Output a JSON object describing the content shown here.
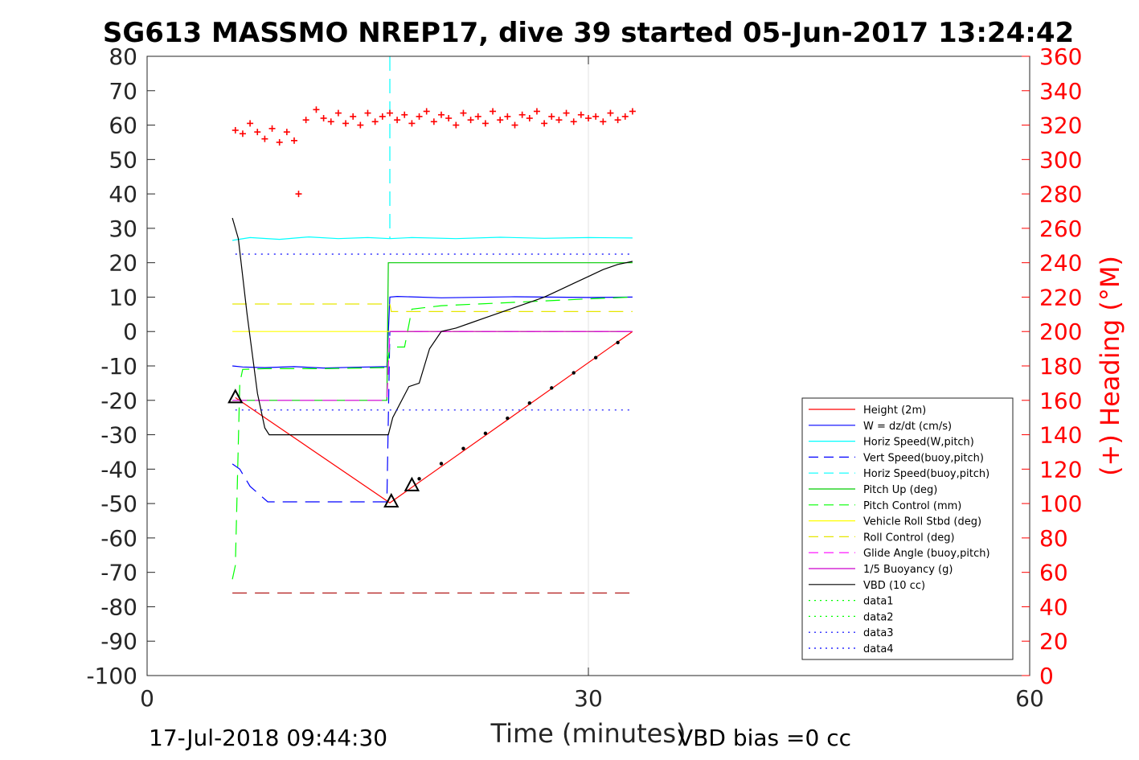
{
  "chart_data": {
    "type": "line",
    "title": "SG613 MASSMO NREP17, dive 39 started 05-Jun-2017 13:24:42",
    "xlabel": "Time (minutes)",
    "ylabel": "",
    "y2label": "(+) Heading (°M)",
    "xlim": [
      0,
      60
    ],
    "ylim": [
      -100,
      80
    ],
    "y2lim": [
      0,
      360
    ],
    "xticks": [
      "0",
      "30",
      "60"
    ],
    "yticks": [
      "80",
      "70",
      "60",
      "50",
      "40",
      "30",
      "20",
      "10",
      "0",
      "-10",
      "-20",
      "-30",
      "-40",
      "-50",
      "-60",
      "-70",
      "-80",
      "-90",
      "-100"
    ],
    "y2ticks": [
      "360",
      "340",
      "320",
      "300",
      "280",
      "260",
      "240",
      "220",
      "200",
      "180",
      "160",
      "140",
      "120",
      "100",
      "80",
      "60",
      "40",
      "20",
      "0"
    ],
    "grid": true,
    "legend_position": "lower-right inside",
    "footer_left": "17-Jul-2018 09:44:30",
    "footer_right": "VBD bias =0 cc",
    "series": [
      {
        "name": "Height (2m)",
        "color": "#ff0000",
        "style": "solid",
        "x": [
          6.0,
          16.5,
          33.0
        ],
        "y": [
          -19.2,
          -49.8,
          0
        ]
      },
      {
        "name": "W = dz/dt (cm/s)",
        "color": "#0000ff",
        "style": "solid",
        "x": [
          5.8,
          6.5,
          8.0,
          10.0,
          12.0,
          14.0,
          16.3,
          16.5,
          17.0,
          20.0,
          25.0,
          30.0,
          33.0
        ],
        "y": [
          -10,
          -10.3,
          -10.5,
          -10.2,
          -10.6,
          -10.4,
          -10.2,
          10,
          10.2,
          9.8,
          10.1,
          9.9,
          10
        ]
      },
      {
        "name": "Horiz Speed(W,pitch)",
        "color": "#00ffff",
        "style": "solid",
        "x": [
          5.8,
          7.0,
          9.0,
          11.0,
          13.0,
          15.0,
          16.5,
          18.0,
          21.0,
          24.0,
          27.0,
          30.0,
          33.0
        ],
        "y": [
          26.5,
          27.3,
          26.8,
          27.5,
          27.0,
          27.3,
          27.0,
          27.3,
          27.0,
          27.4,
          27.1,
          27.3,
          27.2
        ]
      },
      {
        "name": "Vert Speed(buoy,pitch)",
        "color": "#0000ff",
        "style": "dash",
        "x": [
          5.8,
          6.3,
          7.0,
          8.2,
          12.0,
          16.3,
          16.5,
          17.0,
          25.0,
          33.0
        ],
        "y": [
          -38.5,
          -40,
          -45,
          -49.5,
          -49.5,
          -49.5,
          0,
          0,
          0,
          0
        ]
      },
      {
        "name": "Horiz Speed(buoy,pitch)",
        "color": "#00ffff",
        "style": "dash",
        "x": [
          16.5,
          16.5
        ],
        "y": [
          80,
          27
        ]
      },
      {
        "name": "Pitch Up (deg)",
        "color": "#00cc00",
        "style": "solid",
        "x": [
          5.8,
          16.3,
          16.4,
          16.6,
          33.0
        ],
        "y": [
          -20,
          -20,
          20,
          20,
          20
        ]
      },
      {
        "name": "Pitch Control (mm)",
        "color": "#00ff00",
        "style": "dash",
        "x": [
          5.8,
          6.0,
          6.3,
          6.5,
          8.0,
          12.0,
          16.3,
          16.5,
          17.5,
          18.0,
          20.0,
          25.0,
          30.0,
          33.0
        ],
        "y": [
          -72,
          -68,
          -15,
          -11,
          -10.8,
          -10.8,
          -10.5,
          -4.5,
          -4.5,
          6.5,
          7.5,
          8.5,
          9.5,
          10
        ]
      },
      {
        "name": "Vehicle Roll Stbd (deg)",
        "color": "#ffff00",
        "style": "solid",
        "x": [
          5.8,
          33.0
        ],
        "y": [
          0,
          0
        ]
      },
      {
        "name": "Roll Control (deg)",
        "color": "#e6e600",
        "style": "dash",
        "x": [
          5.8,
          16.5,
          16.6,
          33.0
        ],
        "y": [
          8,
          8,
          5.8,
          5.8
        ]
      },
      {
        "name": "Glide Angle (buoy,pitch)",
        "color": "#ff00ff",
        "style": "dash",
        "x": [
          5.8,
          16.3,
          16.5,
          33.0
        ],
        "y": [
          -20,
          -20,
          0,
          0
        ]
      },
      {
        "name": "1/5 Buoyancy (g)",
        "color": "#cc00cc",
        "style": "solid",
        "x": [
          16.5,
          33.0
        ],
        "y": [
          0,
          0
        ]
      },
      {
        "name": "VBD (10 cc)",
        "color": "#000000",
        "style": "solid",
        "x": [
          5.8,
          6.2,
          6.8,
          7.5,
          8.0,
          8.3,
          16.4,
          16.7,
          17.8,
          18.5,
          19.2,
          20.0,
          21.0,
          22.0,
          23.0,
          24.0,
          25.0,
          26.0,
          27.0,
          28.0,
          29.0,
          30.0,
          31.0,
          32.0,
          33.0
        ],
        "y": [
          33,
          27,
          5,
          -18,
          -28,
          -30,
          -30,
          -25,
          -16,
          -15,
          -5,
          0,
          1,
          2.5,
          4,
          5.5,
          7,
          8.5,
          10,
          12,
          14,
          16,
          18,
          19.5,
          20.4
        ]
      },
      {
        "name": "data1",
        "color": "#00ff00",
        "style": "dot",
        "x": [],
        "y": []
      },
      {
        "name": "data2",
        "color": "#00ff00",
        "style": "dot",
        "x": [],
        "y": []
      },
      {
        "name": "data3",
        "color": "#0000ff",
        "style": "dot",
        "x": [
          6.0,
          33.0
        ],
        "y": [
          22.5,
          22.5
        ]
      },
      {
        "name": "data4",
        "color": "#0000ff",
        "style": "dot",
        "x": [
          6.0,
          33.0
        ],
        "y": [
          -22.8,
          -22.8
        ]
      }
    ],
    "unlabeled_series": [
      {
        "color": "#aa0000",
        "style": "dash",
        "x": [
          5.8,
          33.0
        ],
        "y": [
          -76,
          -76
        ]
      }
    ],
    "heading_points": {
      "color": "#ff0000",
      "marker": "plus",
      "x": [
        6.0,
        6.5,
        7.0,
        7.5,
        8.0,
        8.5,
        9.0,
        9.5,
        10.0,
        10.3,
        10.8,
        11.5,
        12.0,
        12.5,
        13.0,
        13.5,
        14.0,
        14.5,
        15.0,
        15.5,
        16.0,
        16.5,
        17.0,
        17.5,
        18.0,
        18.5,
        19.0,
        19.5,
        20.0,
        20.5,
        21.0,
        21.5,
        22.0,
        22.5,
        23.0,
        23.5,
        24.0,
        24.5,
        25.0,
        25.5,
        26.0,
        26.5,
        27.0,
        27.5,
        28.0,
        28.5,
        29.0,
        29.5,
        30.0,
        30.5,
        31.0,
        31.5,
        32.0,
        32.5,
        33.0
      ],
      "y": [
        317,
        315,
        321,
        316,
        312,
        318,
        310,
        316,
        311,
        280,
        323,
        329,
        324,
        322,
        327,
        321,
        325,
        320,
        327,
        322,
        325,
        327,
        323,
        326,
        321,
        325,
        328,
        322,
        326,
        324,
        320,
        327,
        323,
        325,
        321,
        328,
        323,
        325,
        320,
        326,
        324,
        328,
        321,
        325,
        323,
        327,
        322,
        326,
        324,
        325,
        322,
        327,
        323,
        325,
        328
      ]
    },
    "triangle_markers": {
      "x": [
        6.0,
        16.6,
        18.0
      ],
      "y": [
        -19.2,
        -49.5,
        -44.8
      ]
    },
    "black_dot_markers": {
      "x": [
        18.5,
        20.0,
        21.5,
        23.0,
        24.5,
        26.0,
        27.5,
        29.0,
        30.5,
        32.0
      ],
      "y": [
        -42.8,
        -38.4,
        -34.0,
        -29.6,
        -25.2,
        -20.8,
        -16.4,
        -12.0,
        -7.6,
        -3.2
      ]
    }
  }
}
